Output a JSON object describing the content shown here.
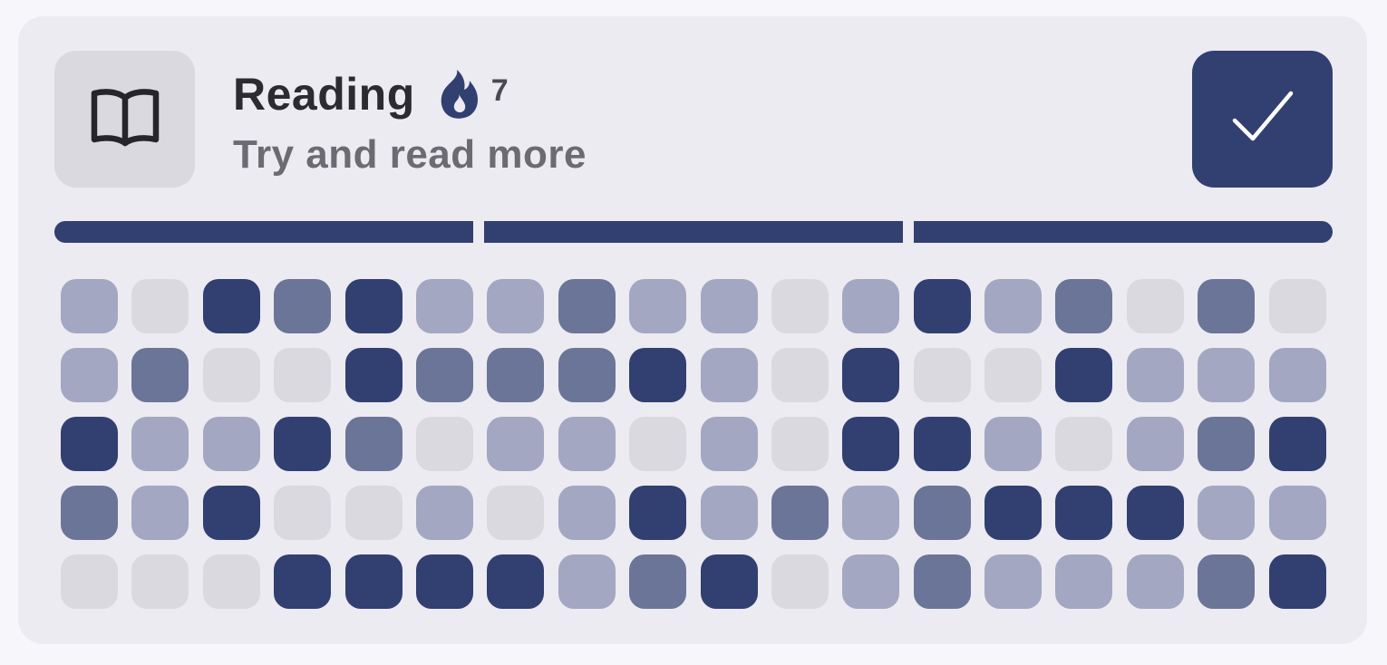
{
  "habit": {
    "title": "Reading",
    "subtitle": "Try and read more",
    "streak": "7",
    "icon": "open-book-icon",
    "completed_today": true,
    "accent_color": "#323f71"
  },
  "progress": {
    "segments": [
      1,
      1,
      1
    ]
  },
  "heatmap": {
    "level_colors": [
      "#d9d9df",
      "#a3a7c1",
      "#6b7598",
      "#323f71"
    ],
    "rows": [
      [
        1,
        0,
        3,
        2,
        3,
        1,
        1,
        2,
        1,
        1,
        0,
        1,
        3,
        1,
        2,
        0,
        2,
        0
      ],
      [
        1,
        2,
        0,
        0,
        3,
        2,
        2,
        2,
        3,
        1,
        0,
        3,
        0,
        0,
        3,
        1,
        1,
        1
      ],
      [
        3,
        1,
        1,
        3,
        2,
        0,
        1,
        1,
        0,
        1,
        0,
        3,
        3,
        1,
        0,
        1,
        2,
        3
      ],
      [
        2,
        1,
        3,
        0,
        0,
        1,
        0,
        1,
        3,
        1,
        2,
        1,
        2,
        3,
        3,
        3,
        1,
        1
      ],
      [
        0,
        0,
        0,
        3,
        3,
        3,
        3,
        1,
        2,
        3,
        0,
        1,
        2,
        1,
        1,
        1,
        2,
        3
      ]
    ]
  }
}
